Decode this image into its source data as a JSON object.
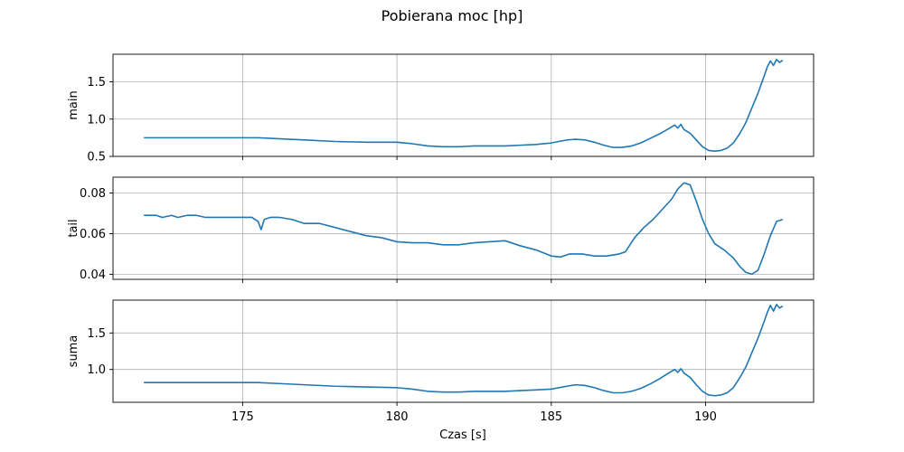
{
  "chart_data": {
    "type": "line",
    "title": "Pobierana moc [hp]",
    "xlabel": "Czas [s]",
    "xticks": [
      175,
      180,
      185,
      190
    ],
    "xlim": [
      170.8,
      193.5
    ],
    "grid": true,
    "line_color": "#1f77b4",
    "panels": [
      {
        "name": "main",
        "ylabel": "main",
        "ylim": [
          0.5,
          1.87
        ],
        "yticks": [
          0.5,
          1.0,
          1.5
        ],
        "ytick_labels": [
          "0.5",
          "1.0",
          "1.5"
        ],
        "x": [
          171.8,
          172.5,
          173.5,
          174.5,
          175.5,
          176.0,
          177.0,
          178.0,
          179.0,
          180.0,
          180.5,
          181.0,
          181.5,
          182.0,
          182.5,
          183.0,
          183.5,
          184.0,
          184.5,
          185.0,
          185.5,
          185.8,
          186.1,
          186.4,
          186.7,
          187.0,
          187.3,
          187.6,
          187.9,
          188.2,
          188.5,
          188.8,
          189.0,
          189.1,
          189.2,
          189.3,
          189.5,
          189.7,
          189.9,
          190.1,
          190.3,
          190.5,
          190.7,
          190.9,
          191.1,
          191.3,
          191.5,
          191.7,
          191.9,
          192.0,
          192.1,
          192.2,
          192.3,
          192.4,
          192.5
        ],
        "values": [
          0.75,
          0.75,
          0.75,
          0.75,
          0.75,
          0.74,
          0.72,
          0.7,
          0.69,
          0.69,
          0.67,
          0.64,
          0.63,
          0.63,
          0.64,
          0.64,
          0.64,
          0.65,
          0.66,
          0.68,
          0.72,
          0.73,
          0.72,
          0.69,
          0.65,
          0.62,
          0.62,
          0.64,
          0.68,
          0.74,
          0.8,
          0.87,
          0.92,
          0.88,
          0.93,
          0.86,
          0.81,
          0.72,
          0.63,
          0.58,
          0.57,
          0.58,
          0.61,
          0.68,
          0.8,
          0.95,
          1.15,
          1.35,
          1.58,
          1.7,
          1.78,
          1.72,
          1.8,
          1.76,
          1.79
        ]
      },
      {
        "name": "tail",
        "ylabel": "tail",
        "ylim": [
          0.0375,
          0.0878
        ],
        "yticks": [
          0.04,
          0.06,
          0.08
        ],
        "ytick_labels": [
          "0.04",
          "0.06",
          "0.08"
        ],
        "x": [
          171.8,
          172.2,
          172.4,
          172.7,
          172.9,
          173.2,
          173.5,
          173.8,
          174.5,
          175.3,
          175.5,
          175.6,
          175.7,
          175.9,
          176.2,
          176.6,
          177.0,
          177.5,
          178.0,
          178.5,
          179.0,
          179.5,
          180.0,
          180.5,
          181.0,
          181.5,
          182.0,
          182.5,
          183.0,
          183.5,
          184.0,
          184.5,
          185.0,
          185.3,
          185.6,
          186.0,
          186.4,
          186.8,
          187.2,
          187.4,
          187.7,
          188.0,
          188.3,
          188.6,
          188.9,
          189.1,
          189.3,
          189.5,
          189.7,
          189.9,
          190.1,
          190.3,
          190.6,
          190.9,
          191.1,
          191.3,
          191.5,
          191.7,
          191.9,
          192.1,
          192.3,
          192.5
        ],
        "values": [
          0.069,
          0.069,
          0.068,
          0.069,
          0.068,
          0.069,
          0.069,
          0.068,
          0.068,
          0.068,
          0.066,
          0.062,
          0.067,
          0.068,
          0.068,
          0.067,
          0.065,
          0.065,
          0.063,
          0.061,
          0.059,
          0.058,
          0.056,
          0.0555,
          0.0555,
          0.0545,
          0.0545,
          0.0555,
          0.056,
          0.0565,
          0.054,
          0.052,
          0.049,
          0.0485,
          0.05,
          0.05,
          0.049,
          0.049,
          0.05,
          0.051,
          0.058,
          0.063,
          0.067,
          0.072,
          0.077,
          0.082,
          0.085,
          0.084,
          0.076,
          0.067,
          0.06,
          0.055,
          0.052,
          0.048,
          0.044,
          0.041,
          0.04,
          0.042,
          0.05,
          0.059,
          0.066,
          0.067
        ]
      },
      {
        "name": "suma",
        "ylabel": "suma",
        "ylim": [
          0.55,
          1.95
        ],
        "yticks": [
          1.0,
          1.5
        ],
        "ytick_labels": [
          "1.0",
          "1.5"
        ],
        "x": [
          171.8,
          172.5,
          173.5,
          174.5,
          175.5,
          176.0,
          177.0,
          178.0,
          179.0,
          180.0,
          180.5,
          181.0,
          181.5,
          182.0,
          182.5,
          183.0,
          183.5,
          184.0,
          184.5,
          185.0,
          185.5,
          185.8,
          186.1,
          186.4,
          186.7,
          187.0,
          187.3,
          187.6,
          187.9,
          188.2,
          188.5,
          188.8,
          189.0,
          189.1,
          189.2,
          189.3,
          189.5,
          189.7,
          189.9,
          190.1,
          190.3,
          190.5,
          190.7,
          190.9,
          191.1,
          191.3,
          191.5,
          191.7,
          191.9,
          192.0,
          192.1,
          192.2,
          192.3,
          192.4,
          192.5
        ],
        "values": [
          0.82,
          0.82,
          0.82,
          0.82,
          0.82,
          0.81,
          0.79,
          0.77,
          0.76,
          0.75,
          0.73,
          0.7,
          0.69,
          0.69,
          0.7,
          0.7,
          0.7,
          0.71,
          0.72,
          0.73,
          0.77,
          0.79,
          0.78,
          0.75,
          0.71,
          0.68,
          0.68,
          0.7,
          0.74,
          0.8,
          0.87,
          0.95,
          1.0,
          0.96,
          1.01,
          0.95,
          0.89,
          0.79,
          0.7,
          0.65,
          0.64,
          0.65,
          0.68,
          0.75,
          0.88,
          1.03,
          1.23,
          1.43,
          1.66,
          1.78,
          1.88,
          1.8,
          1.89,
          1.84,
          1.87
        ]
      }
    ]
  }
}
